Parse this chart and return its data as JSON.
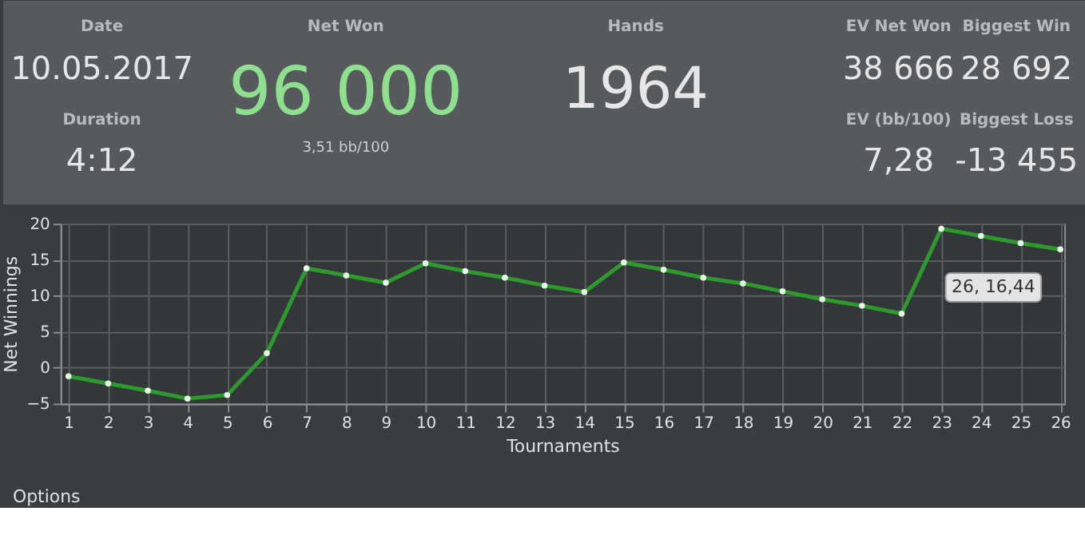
{
  "chart_data": [
    {
      "type": "other",
      "annotations": [
        "Date",
        "10.05.2017",
        "Duration",
        "4:12",
        "Net Won",
        "96 000",
        "3,51 bb/100",
        "Hands",
        "1964",
        "EV Net Won",
        "38 666",
        "Biggest Win",
        "28 692",
        "EV (bb/100)",
        "7,28",
        "Biggest Loss",
        "-13 455"
      ]
    },
    {
      "type": "line",
      "xlabel": "Tournaments",
      "ylabel": "Net Winnings",
      "x": [
        1,
        2,
        3,
        4,
        5,
        6,
        7,
        8,
        9,
        10,
        11,
        12,
        13,
        14,
        15,
        16,
        17,
        18,
        19,
        20,
        21,
        22,
        23,
        24,
        25,
        26
      ],
      "series": [
        {
          "color": "#2e9a2e",
          "values": [
            -1.2,
            -2.2,
            -3.2,
            -4.3,
            -3.8,
            2.0,
            13.8,
            12.8,
            11.8,
            14.5,
            13.4,
            12.5,
            11.4,
            10.5,
            14.6,
            13.6,
            12.5,
            11.7,
            10.6,
            9.5,
            8.6,
            7.5,
            19.3,
            18.3,
            17.3,
            16.44
          ]
        }
      ],
      "xlim": [
        0.8,
        26.1
      ],
      "xticks": [
        1,
        2,
        3,
        4,
        5,
        6,
        7,
        8,
        9,
        10,
        11,
        12,
        13,
        14,
        15,
        16,
        17,
        18,
        19,
        20,
        21,
        22,
        23,
        24,
        25,
        26
      ],
      "ylim": [
        -5,
        20
      ],
      "yticks": [
        -5,
        0,
        5,
        10,
        15,
        20
      ],
      "grid": true,
      "marker": "circle",
      "line_style": "solid",
      "legend": false,
      "annotations": [
        {
          "text": "26, 16,44",
          "x": 26,
          "y": 16.44
        },
        "Options"
      ]
    }
  ]
}
